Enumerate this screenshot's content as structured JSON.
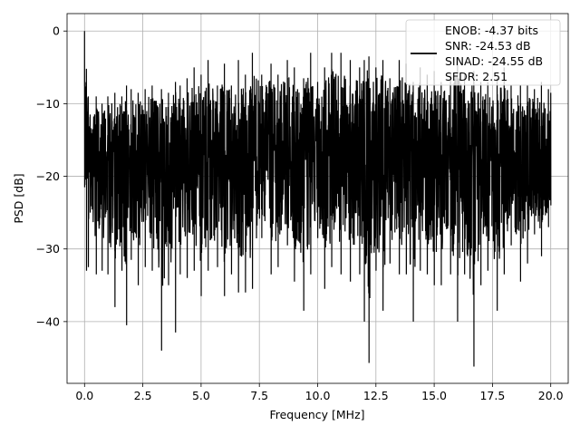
{
  "chart_data": {
    "type": "line",
    "xlabel": "Frequency [MHz]",
    "ylabel": "PSD [dB]",
    "xlim": [
      -0.75,
      20.75
    ],
    "ylim": [
      -48.5,
      2.4
    ],
    "grid": true,
    "x_ticks": [
      0.0,
      2.5,
      5.0,
      7.5,
      10.0,
      12.5,
      15.0,
      17.5,
      20.0
    ],
    "x_tick_labels": [
      "0.0",
      "2.5",
      "5.0",
      "7.5",
      "10.0",
      "12.5",
      "15.0",
      "17.5",
      "20.0"
    ],
    "y_ticks": [
      0,
      -10,
      -20,
      -30,
      -40
    ],
    "y_tick_labels": [
      "0",
      "−10",
      "−20",
      "−30",
      "−40"
    ],
    "legend": {
      "placement": "top-right",
      "entries": [
        "ENOB: -4.37 bits",
        "SNR: -24.53 dB",
        "SINAD: -24.55 dB",
        "SFDR: 2.51"
      ]
    },
    "series": [
      {
        "color": "#000000",
        "x": [
          0.0,
          0.08,
          0.16,
          0.24,
          0.5,
          0.75,
          1.0,
          1.3,
          1.6,
          1.8,
          2.0,
          2.3,
          2.6,
          2.9,
          3.3,
          3.6,
          3.9,
          4.1,
          4.4,
          4.7,
          5.0,
          5.3,
          5.7,
          6.0,
          6.3,
          6.6,
          6.9,
          7.2,
          7.6,
          8.0,
          8.3,
          8.7,
          9.0,
          9.4,
          9.7,
          10.0,
          10.3,
          10.6,
          11.0,
          11.4,
          11.8,
          12.0,
          12.2,
          12.5,
          12.8,
          13.1,
          13.5,
          13.8,
          14.1,
          14.4,
          14.7,
          15.0,
          15.3,
          15.7,
          16.0,
          16.3,
          16.7,
          17.0,
          17.3,
          17.7,
          18.0,
          18.3,
          18.7,
          19.0,
          19.3,
          19.6,
          19.9,
          20.0
        ],
        "y_upper": [
          0.0,
          -5.2,
          -9.0,
          -11.5,
          -9.0,
          -10.0,
          -9.0,
          -8.5,
          -9.0,
          -7.5,
          -8.0,
          -8.5,
          -8.0,
          -7.5,
          -8.0,
          -8.5,
          -7.0,
          -7.5,
          -6.5,
          -5.0,
          -6.0,
          -4.0,
          -7.5,
          -4.5,
          -7.5,
          -4.0,
          -6.0,
          -3.0,
          -6.0,
          -4.5,
          -6.0,
          -4.0,
          -5.0,
          -6.5,
          -3.0,
          -7.0,
          -5.0,
          -3.0,
          -3.0,
          -4.0,
          -5.0,
          -4.0,
          -3.5,
          -5.0,
          -4.0,
          -6.5,
          -4.0,
          -4.5,
          -7.0,
          -5.0,
          -6.0,
          -5.5,
          -7.0,
          -6.0,
          -4.0,
          -6.0,
          -5.5,
          -7.0,
          -7.0,
          -6.5,
          -5.0,
          -7.5,
          -7.5,
          -7.5,
          -8.0,
          -7.0,
          -8.0,
          -8.5
        ],
        "y_lower": [
          -21.5,
          -33.0,
          -32.5,
          -25.0,
          -33.5,
          -33.0,
          -33.5,
          -38.0,
          -33.0,
          -40.5,
          -31.5,
          -35.0,
          -32.5,
          -33.0,
          -44.0,
          -35.0,
          -41.5,
          -33.5,
          -34.0,
          -33.0,
          -36.5,
          -33.0,
          -32.5,
          -36.5,
          -33.5,
          -36.0,
          -36.0,
          -35.5,
          -28.5,
          -33.5,
          -32.5,
          -29.5,
          -34.5,
          -38.5,
          -33.5,
          -28.5,
          -35.5,
          -32.5,
          -33.5,
          -34.5,
          -33.5,
          -40.0,
          -45.7,
          -33.0,
          -38.5,
          -32.0,
          -33.5,
          -33.5,
          -40.0,
          -33.0,
          -33.5,
          -35.0,
          -35.0,
          -33.5,
          -40.0,
          -33.5,
          -46.2,
          -35.0,
          -33.0,
          -38.5,
          -33.5,
          -29.5,
          -34.5,
          -32.0,
          -28.0,
          -31.0,
          -27.0,
          -24.0
        ]
      }
    ]
  }
}
